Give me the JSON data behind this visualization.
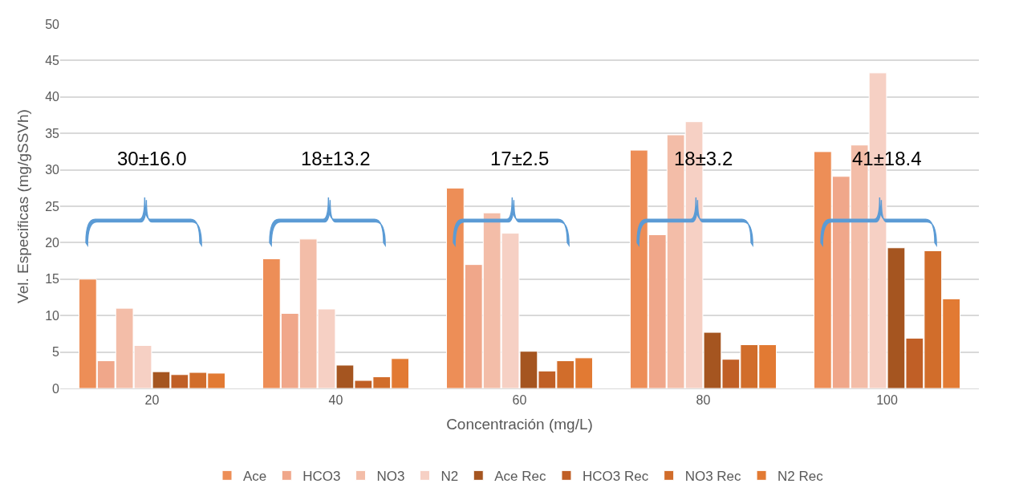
{
  "chart_data": {
    "type": "bar",
    "xlabel": "Concentración (mg/L)",
    "ylabel": "Vel. Especificas (mg/gSSVh)",
    "categories": [
      "20",
      "40",
      "60",
      "80",
      "100"
    ],
    "series": [
      {
        "name": "Ace",
        "color": "#ed8e57",
        "values": [
          15.0,
          17.8,
          27.5,
          32.7,
          32.5
        ]
      },
      {
        "name": "HCO3",
        "color": "#f0a78a",
        "values": [
          3.8,
          10.3,
          17.0,
          21.1,
          29.1
        ]
      },
      {
        "name": "NO3",
        "color": "#f3bda8",
        "values": [
          11.0,
          20.5,
          24.1,
          34.8,
          33.4
        ]
      },
      {
        "name": "N2",
        "color": "#f6d0c4",
        "values": [
          5.9,
          10.9,
          21.3,
          36.6,
          43.3
        ]
      },
      {
        "name": "Ace Rec",
        "color": "#a55520",
        "values": [
          2.3,
          3.2,
          5.1,
          7.7,
          19.3
        ]
      },
      {
        "name": "HCO3 Rec",
        "color": "#c05f26",
        "values": [
          1.9,
          1.1,
          2.4,
          4.0,
          6.9
        ]
      },
      {
        "name": "NO3 Rec",
        "color": "#d16d2b",
        "values": [
          2.2,
          1.6,
          3.8,
          6.0,
          18.9
        ]
      },
      {
        "name": "N2 Rec",
        "color": "#e27a33",
        "values": [
          2.1,
          4.1,
          4.2,
          6.0,
          12.3
        ]
      }
    ],
    "ylim": [
      0,
      50
    ],
    "yticks": [
      0,
      5,
      10,
      15,
      20,
      25,
      30,
      35,
      40,
      45,
      50
    ],
    "grid": "y",
    "legend": "bottom",
    "annotations": [
      "30±16.0",
      "18±13.2",
      "17±2.5",
      "18±3.2",
      "41±18.4"
    ]
  }
}
